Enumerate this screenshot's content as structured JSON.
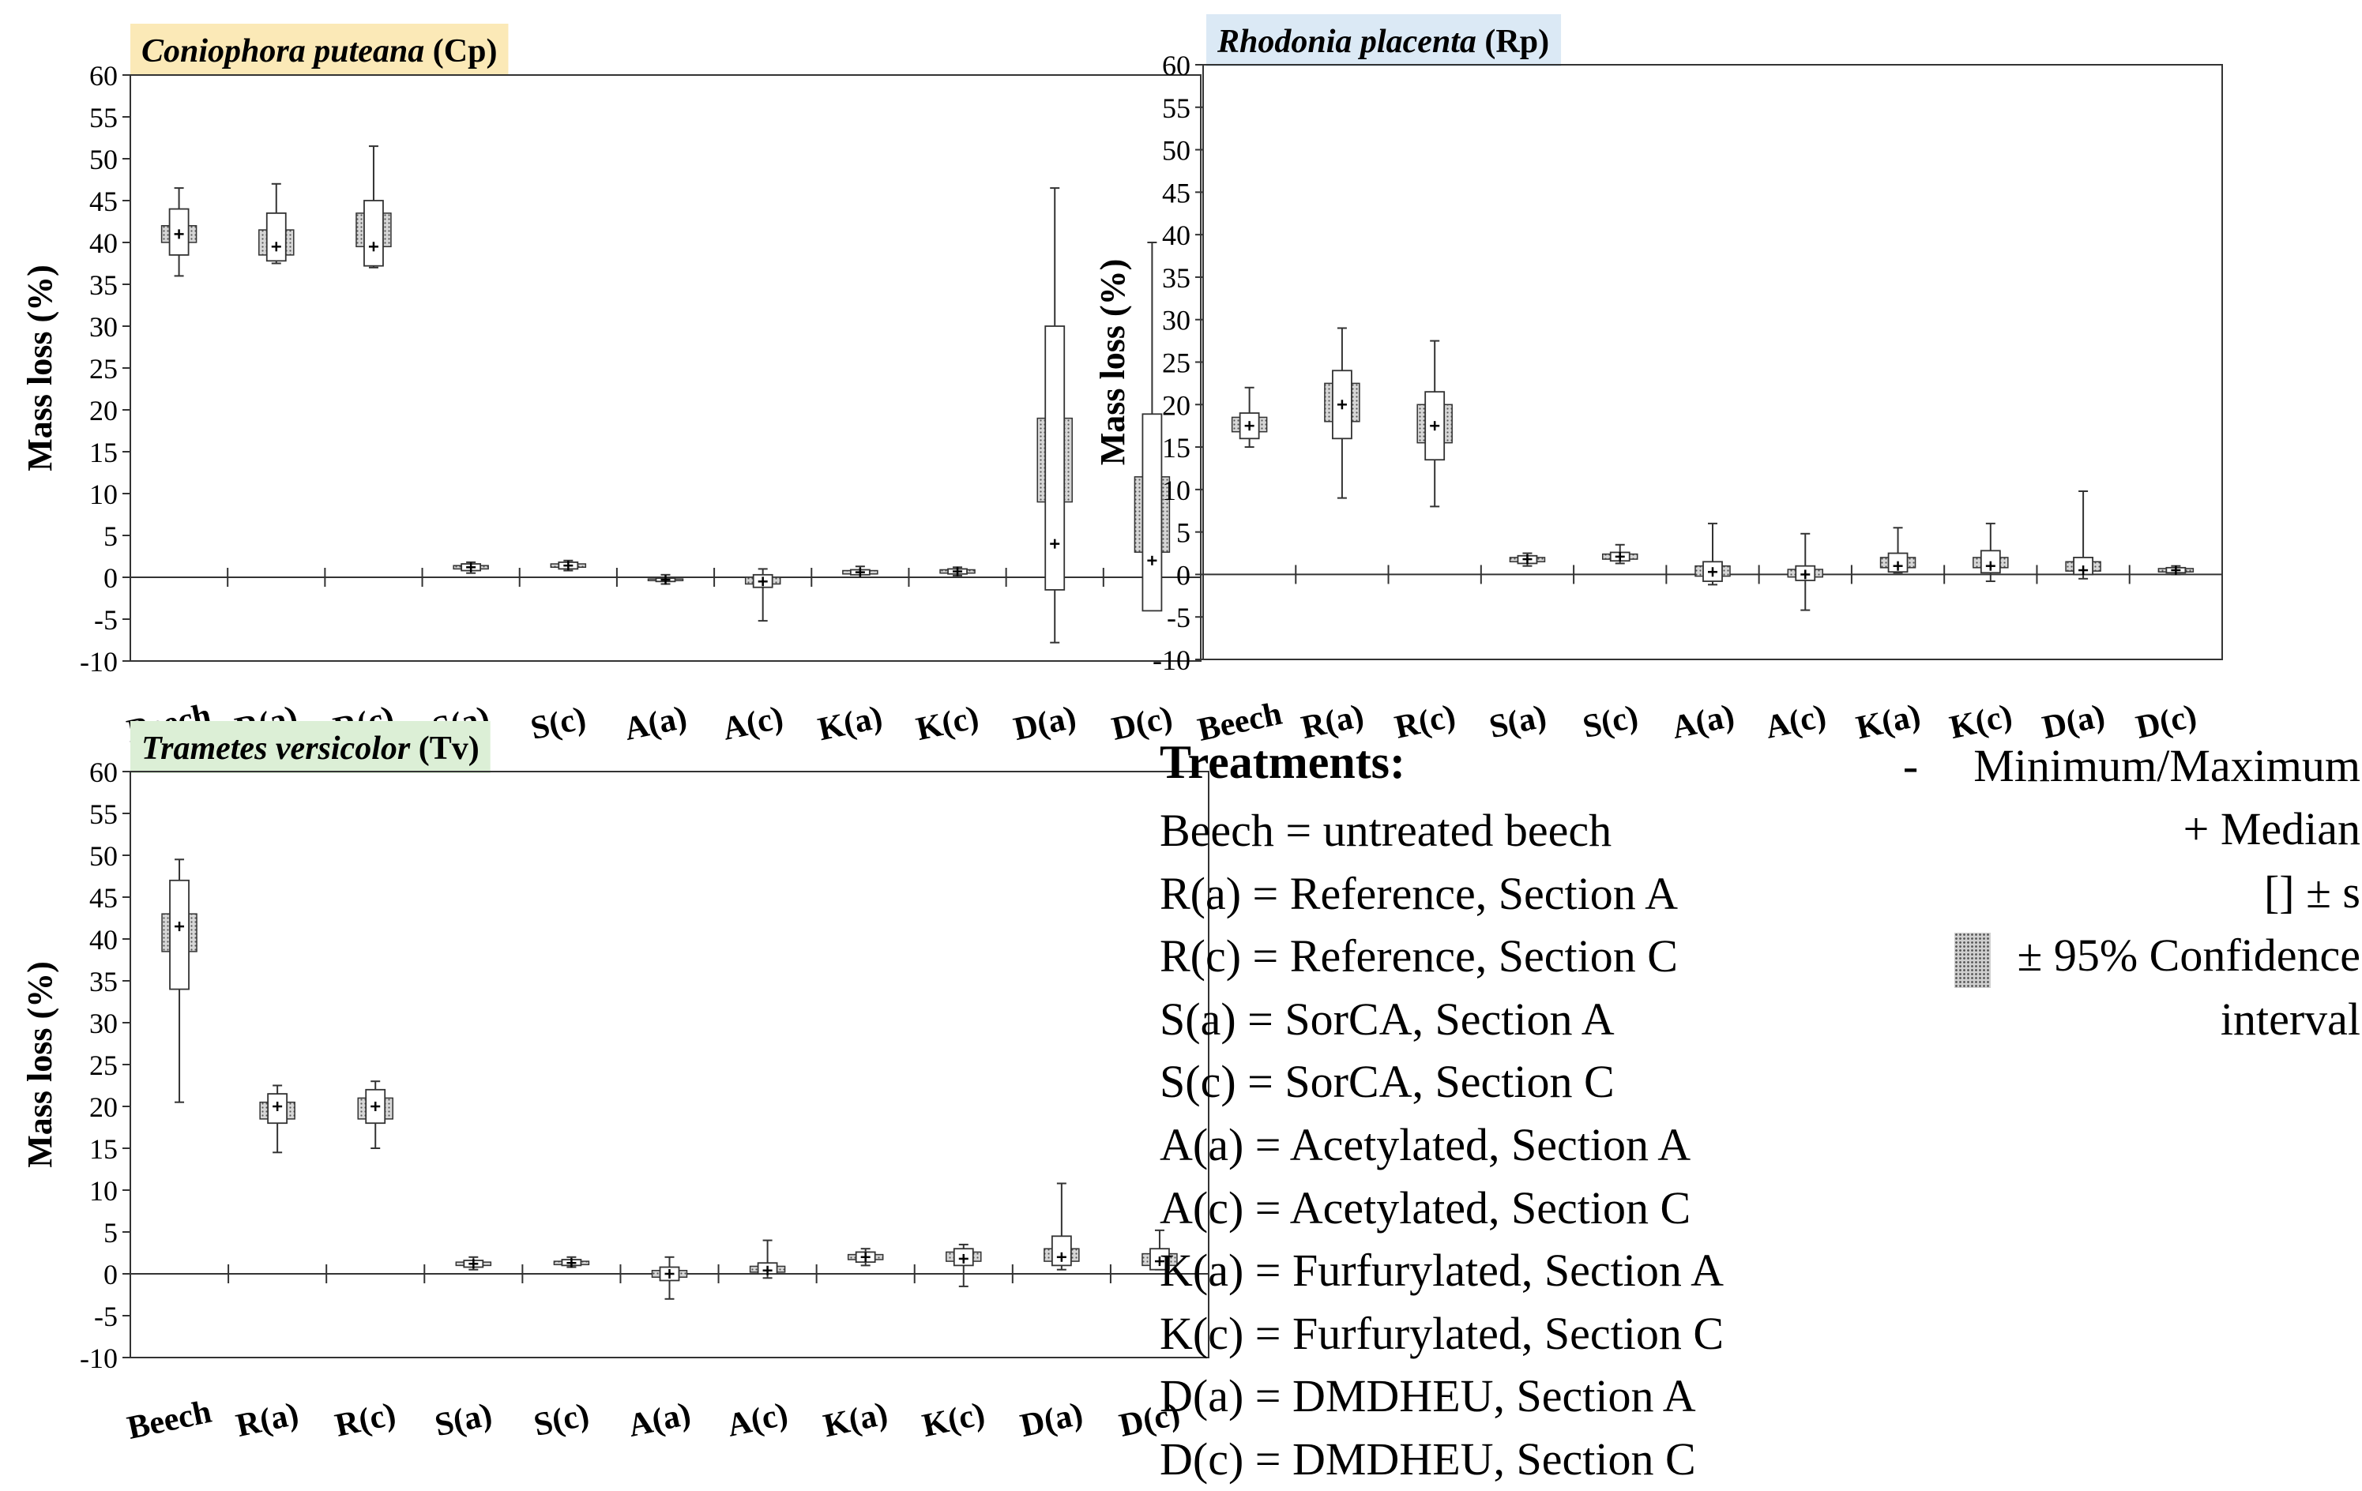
{
  "chart_data": [
    {
      "type": "box",
      "title_italic": "Coniophora puteana",
      "title_abbr": "(Cp)",
      "title_bg": "#fbe9b7",
      "ylabel": "Mass loss (%)",
      "ylim": [
        -10,
        60
      ],
      "yticks": [
        60,
        55,
        50,
        45,
        40,
        35,
        30,
        25,
        20,
        15,
        10,
        5,
        0,
        -5,
        -10
      ],
      "ytick_labels": [
        "60",
        "55",
        "50",
        "45",
        "40",
        "35",
        "30",
        "25",
        "20",
        "15",
        "10",
        "5",
        "0",
        "-5",
        "-10"
      ],
      "categories": [
        "Beech",
        "R(a)",
        "R(c)",
        "S(a)",
        "S(c)",
        "A(a)",
        "A(c)",
        "K(a)",
        "K(c)",
        "D(a)",
        "D(c)"
      ],
      "boxes": [
        {
          "min": 36,
          "max": 46.5,
          "median": 41,
          "sd_low": 38.5,
          "sd_high": 44,
          "ci_low": 40,
          "ci_high": 42
        },
        {
          "min": 37.5,
          "max": 47,
          "median": 39.5,
          "sd_low": 37.8,
          "sd_high": 43.5,
          "ci_low": 38.5,
          "ci_high": 41.5
        },
        {
          "min": 37,
          "max": 51.5,
          "median": 39.5,
          "sd_low": 37.2,
          "sd_high": 45,
          "ci_low": 39.5,
          "ci_high": 43.5
        },
        {
          "min": 0.5,
          "max": 1.8,
          "median": 1.2,
          "sd_low": 0.8,
          "sd_high": 1.6,
          "ci_low": 1.0,
          "ci_high": 1.4
        },
        {
          "min": 0.8,
          "max": 2,
          "median": 1.4,
          "sd_low": 1.0,
          "sd_high": 1.8,
          "ci_low": 1.2,
          "ci_high": 1.6
        },
        {
          "min": -0.8,
          "max": 0.3,
          "median": -0.3,
          "sd_low": -0.5,
          "sd_high": -0.1,
          "ci_low": -0.4,
          "ci_high": -0.2
        },
        {
          "min": -5.2,
          "max": 1,
          "median": -0.5,
          "sd_low": -1.2,
          "sd_high": 0.3,
          "ci_low": -0.8,
          "ci_high": 0
        },
        {
          "min": 0,
          "max": 1.3,
          "median": 0.6,
          "sd_low": 0.3,
          "sd_high": 0.9,
          "ci_low": 0.4,
          "ci_high": 0.8
        },
        {
          "min": 0.2,
          "max": 1.2,
          "median": 0.7,
          "sd_low": 0.4,
          "sd_high": 1.0,
          "ci_low": 0.5,
          "ci_high": 0.9
        },
        {
          "min": -7.8,
          "max": 46.5,
          "median": 4,
          "sd_low": -1.5,
          "sd_high": 30,
          "ci_low": 9,
          "ci_high": 19
        },
        {
          "min": -2,
          "max": 40,
          "median": 2,
          "sd_low": -4,
          "sd_high": 19.5,
          "ci_low": 3,
          "ci_high": 12
        }
      ]
    },
    {
      "type": "box",
      "title_italic": "Rhodonia placenta",
      "title_abbr": "(Rp)",
      "title_bg": "#dbe9f5",
      "ylabel": "Mass loss (%)",
      "ylim": [
        -10,
        60
      ],
      "yticks": [
        60,
        55,
        50,
        45,
        40,
        35,
        30,
        25,
        20,
        15,
        10,
        5,
        0,
        -5,
        -10
      ],
      "ytick_labels": [
        "60",
        "55",
        "50",
        "45",
        "40",
        "35",
        "30",
        "25",
        "20",
        "15",
        "10",
        "5",
        "0",
        "-5",
        "-10"
      ],
      "categories": [
        "Beech",
        "R(a)",
        "R(c)",
        "S(a)",
        "S(c)",
        "A(a)",
        "A(c)",
        "K(a)",
        "K(c)",
        "D(a)",
        "D(c)"
      ],
      "boxes": [
        {
          "min": 15,
          "max": 22,
          "median": 17.5,
          "sd_low": 16,
          "sd_high": 19,
          "ci_low": 16.8,
          "ci_high": 18.5
        },
        {
          "min": 9,
          "max": 29,
          "median": 20,
          "sd_low": 16,
          "sd_high": 24,
          "ci_low": 18,
          "ci_high": 22.5
        },
        {
          "min": 8,
          "max": 27.5,
          "median": 17.5,
          "sd_low": 13.5,
          "sd_high": 21.5,
          "ci_low": 15.5,
          "ci_high": 20
        },
        {
          "min": 1,
          "max": 2.5,
          "median": 1.8,
          "sd_low": 1.3,
          "sd_high": 2.2,
          "ci_low": 1.5,
          "ci_high": 2.0
        },
        {
          "min": 1.3,
          "max": 3.5,
          "median": 2.1,
          "sd_low": 1.6,
          "sd_high": 2.6,
          "ci_low": 1.8,
          "ci_high": 2.4
        },
        {
          "min": -1.2,
          "max": 6,
          "median": 0.3,
          "sd_low": -0.8,
          "sd_high": 1.5,
          "ci_low": -0.2,
          "ci_high": 1.0
        },
        {
          "min": -4.2,
          "max": 4.8,
          "median": 0,
          "sd_low": -0.7,
          "sd_high": 1.0,
          "ci_low": -0.3,
          "ci_high": 0.6
        },
        {
          "min": 0.2,
          "max": 5.5,
          "median": 1,
          "sd_low": 0.3,
          "sd_high": 2.5,
          "ci_low": 0.8,
          "ci_high": 2.0
        },
        {
          "min": -0.8,
          "max": 6,
          "median": 1,
          "sd_low": 0.2,
          "sd_high": 2.8,
          "ci_low": 0.8,
          "ci_high": 2.0
        },
        {
          "min": -0.5,
          "max": 9.8,
          "median": 0.5,
          "sd_low": 0,
          "sd_high": 2.0,
          "ci_low": 0.4,
          "ci_high": 1.5
        },
        {
          "min": 0,
          "max": 1,
          "median": 0.5,
          "sd_low": 0.2,
          "sd_high": 0.8,
          "ci_low": 0.3,
          "ci_high": 0.7
        }
      ]
    },
    {
      "type": "box",
      "title_italic": "Trametes versicolor",
      "title_abbr": "(Tv)",
      "title_bg": "#dcefd6",
      "ylabel": "Mass loss (%)",
      "ylim": [
        -10,
        60
      ],
      "yticks": [
        60,
        55,
        50,
        45,
        40,
        35,
        30,
        25,
        20,
        15,
        10,
        5,
        0,
        -5,
        -10
      ],
      "ytick_labels": [
        "60",
        "55",
        "50",
        "45",
        "40",
        "35",
        "30",
        "25",
        "20",
        "15",
        "10",
        "5",
        "0",
        "-5",
        "-10"
      ],
      "categories": [
        "Beech",
        "R(a)",
        "R(c)",
        "S(a)",
        "S(c)",
        "A(a)",
        "A(c)",
        "K(a)",
        "K(c)",
        "D(a)",
        "D(c)"
      ],
      "boxes": [
        {
          "min": 20.5,
          "max": 49.5,
          "median": 41.5,
          "sd_low": 34,
          "sd_high": 47,
          "ci_low": 38.5,
          "ci_high": 43
        },
        {
          "min": 14.5,
          "max": 22.5,
          "median": 20,
          "sd_low": 18,
          "sd_high": 21.5,
          "ci_low": 18.5,
          "ci_high": 20.5
        },
        {
          "min": 15,
          "max": 23,
          "median": 20,
          "sd_low": 18,
          "sd_high": 22,
          "ci_low": 18.5,
          "ci_high": 21
        },
        {
          "min": 0.5,
          "max": 2,
          "median": 1.2,
          "sd_low": 0.8,
          "sd_high": 1.6,
          "ci_low": 1.0,
          "ci_high": 1.4
        },
        {
          "min": 0.8,
          "max": 2,
          "median": 1.3,
          "sd_low": 1.0,
          "sd_high": 1.7,
          "ci_low": 1.1,
          "ci_high": 1.5
        },
        {
          "min": -3,
          "max": 2,
          "median": 0,
          "sd_low": -0.8,
          "sd_high": 0.8,
          "ci_low": -0.4,
          "ci_high": 0.4
        },
        {
          "min": -0.5,
          "max": 4,
          "median": 0.4,
          "sd_low": 0,
          "sd_high": 1.3,
          "ci_low": 0.2,
          "ci_high": 0.9
        },
        {
          "min": 1,
          "max": 3,
          "median": 2,
          "sd_low": 1.4,
          "sd_high": 2.6,
          "ci_low": 1.7,
          "ci_high": 2.3
        },
        {
          "min": -1.5,
          "max": 3.5,
          "median": 1.8,
          "sd_low": 1,
          "sd_high": 3,
          "ci_low": 1.5,
          "ci_high": 2.6
        },
        {
          "min": 0.5,
          "max": 10.8,
          "median": 2,
          "sd_low": 1,
          "sd_high": 4.5,
          "ci_low": 1.5,
          "ci_high": 3.0
        },
        {
          "min": 0.5,
          "max": 5.2,
          "median": 1.5,
          "sd_low": 0.5,
          "sd_high": 3,
          "ci_low": 1.0,
          "ci_high": 2.4
        }
      ]
    }
  ],
  "treatments": {
    "heading": "Treatments:",
    "items": [
      "Beech = untreated beech",
      "R(a) = Reference, Section A",
      "R(c) = Reference, Section C",
      "S(a) = SorCA, Section A",
      "S(c) = SorCA, Section C",
      "A(a) = Acetylated, Section A",
      "A(c) = Acetylated, Section C",
      "K(a) = Furfurylated, Section A",
      "K(c) = Furfurylated, Section C",
      "D(a) = DMDHEU, Section A",
      "D(c) = DMDHEU, Section C"
    ]
  },
  "key": {
    "minmax_symbol": "-",
    "minmax_label": "Minimum/Maximum",
    "median_label": "+ Median",
    "sd_label": "[] ± s",
    "ci_label": "± 95% Confidence",
    "ci_label_2": "interval"
  }
}
